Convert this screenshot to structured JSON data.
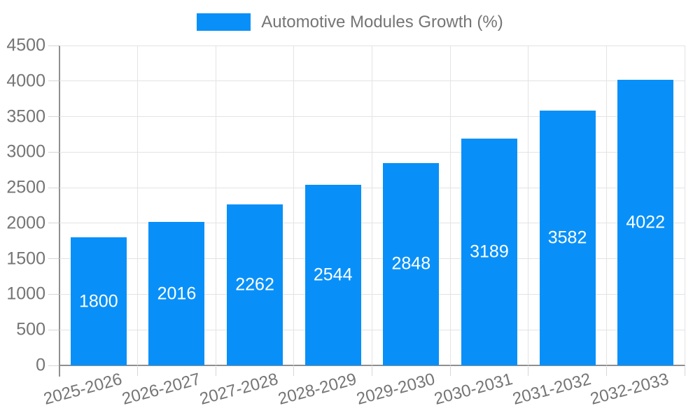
{
  "legend": {
    "label": "Automotive Modules Growth (%)"
  },
  "chart_data": {
    "type": "bar",
    "title": "",
    "series_name": "Automotive Modules Growth (%)",
    "categories": [
      "2025-2026",
      "2026-2027",
      "2027-2028",
      "2028-2029",
      "2029-2030",
      "2030-2031",
      "2031-2032",
      "2032-2033"
    ],
    "values": [
      1800,
      2016,
      2262,
      2544,
      2848,
      3189,
      3582,
      4022
    ],
    "xlabel": "",
    "ylabel": "",
    "ylim": [
      0,
      4500
    ],
    "yticks": [
      0,
      500,
      1000,
      1500,
      2000,
      2500,
      3000,
      3500,
      4000,
      4500
    ],
    "grid": true,
    "legend_position": "top-center",
    "bar_label_position": "inside-center",
    "x_label_rotation_deg": -15,
    "colors": {
      "bar": "#0890f8",
      "bar_label": "#ffffff",
      "axis_text": "#757575",
      "grid_line": "#e3e3e3",
      "axis_line": "#8f8f8f",
      "tick": "#d6d6d6",
      "background": "#ffffff"
    }
  }
}
